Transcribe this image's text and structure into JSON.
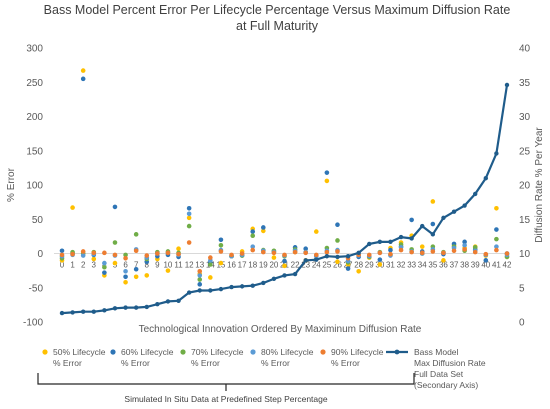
{
  "chart_data": {
    "type": "scatter",
    "title_lines": [
      "Bass Model Percent Error Per Lifecycle Percentage Versus Maximum Diffusion Rate",
      "at Full Maturity"
    ],
    "xlabel": "Technological Innovation Ordered By Maximinum Diffusion Rate",
    "ylabel": "% Error",
    "y2label": "Diffusion Rate % Per Year",
    "ylim": [
      -100,
      300
    ],
    "y2lim": [
      0,
      40
    ],
    "yticks": [
      -100,
      -50,
      0,
      50,
      100,
      150,
      200,
      250,
      300
    ],
    "y2ticks": [
      0,
      5,
      10,
      15,
      20,
      25,
      30,
      35,
      40
    ],
    "categories": [
      "0",
      "1",
      "2",
      "3",
      "4",
      "5",
      "6",
      "7",
      "8",
      "9",
      "10",
      "11",
      "12",
      "13",
      "14",
      "15",
      "16",
      "17",
      "18",
      "19",
      "20",
      "21",
      "22",
      "23",
      "24",
      "25",
      "26",
      "27",
      "28",
      "29",
      "30",
      "31",
      "32",
      "33",
      "34",
      "35",
      "36",
      "37",
      "38",
      "39",
      "40",
      "41",
      "42"
    ],
    "series": [
      {
        "name": "50% Lifecycle % Error",
        "color": "#FFC000",
        "values": [
          -10,
          67,
          267,
          -8,
          -32,
          -14,
          -42,
          -34,
          -32,
          -8,
          -25,
          7,
          52,
          -30,
          -35,
          -14,
          -4,
          3,
          36,
          33,
          -6,
          -18,
          2,
          -10,
          32,
          106,
          -12,
          -16,
          -26,
          -6,
          -16,
          8,
          16,
          26,
          10,
          76,
          -10,
          12,
          8,
          10,
          -3,
          66,
          -5
        ]
      },
      {
        "name": "60% Lifecycle % Error",
        "color": "#2E75B6",
        "values": [
          4,
          0,
          255,
          -2,
          -28,
          68,
          -34,
          -23,
          -12,
          -4,
          -2,
          -5,
          66,
          -45,
          -13,
          20,
          -4,
          -3,
          32,
          38,
          3,
          -11,
          9,
          7,
          -3,
          118,
          42,
          -22,
          -5,
          -4,
          -9,
          5,
          10,
          49,
          3,
          43,
          -1,
          14,
          17,
          6,
          -10,
          35,
          0
        ]
      },
      {
        "name": "70% Lifecycle % Error",
        "color": "#70AD47",
        "values": [
          -7,
          2,
          0,
          2,
          -20,
          16,
          -2,
          28,
          -8,
          2,
          3,
          1,
          40,
          -38,
          -16,
          12,
          -4,
          -3,
          26,
          5,
          4,
          -4,
          6,
          2,
          -8,
          8,
          19,
          -13,
          -2,
          -5,
          2,
          -2,
          13,
          6,
          0,
          10,
          2,
          10,
          4,
          9,
          -2,
          21,
          -5
        ]
      },
      {
        "name": "80% Lifecycle % Error",
        "color": "#5B9BD5",
        "values": [
          -4,
          -2,
          -3,
          -1,
          -14,
          -3,
          -26,
          6,
          -6,
          0,
          1,
          -2,
          58,
          -32,
          -10,
          5,
          -4,
          -2,
          10,
          4,
          2,
          -3,
          4,
          2,
          -4,
          4,
          5,
          -11,
          -3,
          -4,
          1,
          -3,
          9,
          3,
          0,
          6,
          1,
          8,
          12,
          4,
          -2,
          10,
          -2
        ]
      },
      {
        "name": "90% Lifecycle % Error",
        "color": "#ED7D31",
        "values": [
          -2,
          -1,
          3,
          1,
          1,
          -2,
          -7,
          4,
          -3,
          0,
          1,
          -1,
          16,
          -26,
          -6,
          3,
          -2,
          0,
          5,
          2,
          1,
          -2,
          2,
          1,
          -2,
          2,
          3,
          -7,
          -2,
          -2,
          1,
          -1,
          5,
          2,
          1,
          3,
          1,
          4,
          6,
          2,
          -1,
          5,
          0
        ]
      }
    ],
    "line_series": {
      "name": "Bass Model Max Diffusion Rate Full Data Set (Secondary Axis)",
      "color": "#1F5C8B",
      "axis": "secondary",
      "values": [
        1.3,
        1.4,
        1.5,
        1.5,
        1.7,
        2.0,
        2.1,
        2.1,
        2.2,
        2.6,
        3.0,
        3.1,
        4.3,
        4.6,
        4.6,
        4.8,
        5.1,
        5.2,
        5.3,
        5.7,
        6.3,
        6.8,
        7.0,
        9.0,
        9.1,
        9.6,
        9.5,
        9.6,
        10.1,
        11.4,
        11.7,
        11.7,
        12.4,
        12.2,
        14.0,
        12.8,
        15.2,
        16.1,
        17.0,
        18.7,
        21.0,
        24.6,
        34.6
      ]
    },
    "legend_placement": "bottom",
    "legend": [
      {
        "lines": [
          "50% Lifecycle",
          "% Error"
        ],
        "color": "#FFC000",
        "kind": "marker"
      },
      {
        "lines": [
          "60% Lifecycle",
          "% Error"
        ],
        "color": "#2E75B6",
        "kind": "marker"
      },
      {
        "lines": [
          "70% Lifecycle",
          "% Error"
        ],
        "color": "#70AD47",
        "kind": "marker"
      },
      {
        "lines": [
          "80% Lifecycle",
          "% Error"
        ],
        "color": "#5B9BD5",
        "kind": "marker"
      },
      {
        "lines": [
          "90% Lifecycle",
          "% Error"
        ],
        "color": "#ED7D31",
        "kind": "marker"
      },
      {
        "lines": [
          "Bass Model",
          "Max Diffusion Rate",
          "Full Data Set",
          "(Secondary Axis)"
        ],
        "color": "#1F5C8B",
        "kind": "line"
      }
    ],
    "bracket_note": "Simulated In Situ Data at Predefined Step Percentage",
    "grid": false
  }
}
